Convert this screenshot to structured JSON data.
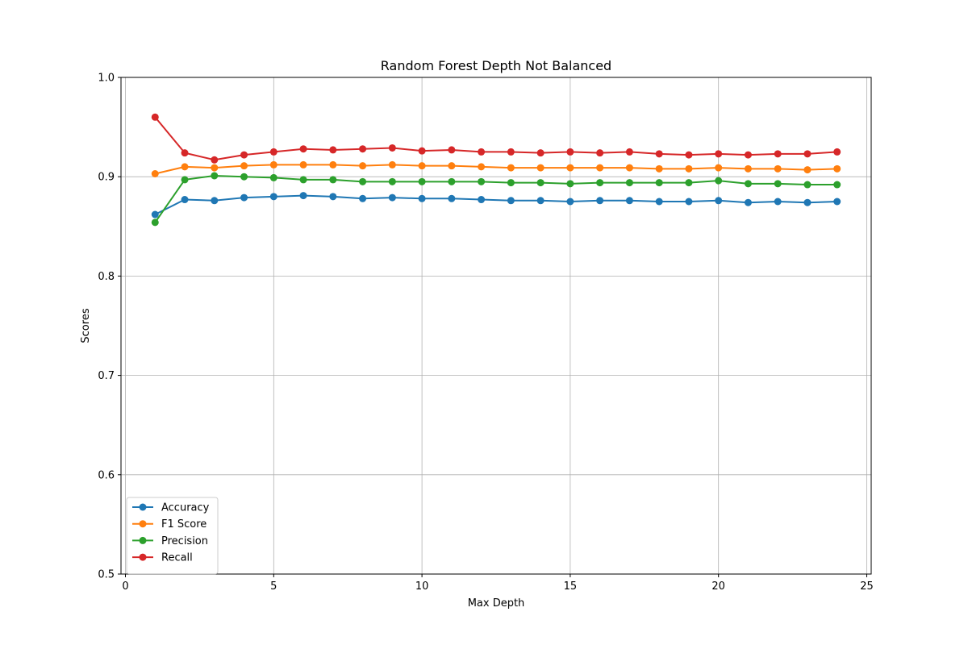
{
  "chart_data": {
    "type": "line",
    "title": "Random Forest Depth Not Balanced",
    "xlabel": "Max Depth",
    "ylabel": "Scores",
    "xlim": [
      -0.15,
      25.15
    ],
    "ylim": [
      0.5,
      1.0
    ],
    "xticks": [
      0,
      5,
      10,
      15,
      20,
      25
    ],
    "yticks": [
      0.5,
      0.6,
      0.7,
      0.8,
      0.9,
      1.0
    ],
    "ytick_labels": [
      "0.5",
      "0.6",
      "0.7",
      "0.8",
      "0.9",
      "1.0"
    ],
    "grid": true,
    "legend_position": "lower-left",
    "x": [
      1,
      2,
      3,
      4,
      5,
      6,
      7,
      8,
      9,
      10,
      11,
      12,
      13,
      14,
      15,
      16,
      17,
      18,
      19,
      20,
      21,
      22,
      23,
      24
    ],
    "series": [
      {
        "name": "Accuracy",
        "color": "#1f77b4",
        "values": [
          0.862,
          0.877,
          0.876,
          0.879,
          0.88,
          0.881,
          0.88,
          0.878,
          0.879,
          0.878,
          0.878,
          0.877,
          0.876,
          0.876,
          0.875,
          0.876,
          0.876,
          0.875,
          0.875,
          0.876,
          0.874,
          0.875,
          0.874,
          0.875
        ]
      },
      {
        "name": "F1 Score",
        "color": "#ff7f0e",
        "values": [
          0.903,
          0.91,
          0.909,
          0.911,
          0.912,
          0.912,
          0.912,
          0.911,
          0.912,
          0.911,
          0.911,
          0.91,
          0.909,
          0.909,
          0.909,
          0.909,
          0.909,
          0.908,
          0.908,
          0.909,
          0.908,
          0.908,
          0.907,
          0.908
        ]
      },
      {
        "name": "Precision",
        "color": "#2ca02c",
        "values": [
          0.854,
          0.897,
          0.901,
          0.9,
          0.899,
          0.897,
          0.897,
          0.895,
          0.895,
          0.895,
          0.895,
          0.895,
          0.894,
          0.894,
          0.893,
          0.894,
          0.894,
          0.894,
          0.894,
          0.896,
          0.893,
          0.893,
          0.892,
          0.892
        ]
      },
      {
        "name": "Recall",
        "color": "#d62728",
        "values": [
          0.96,
          0.924,
          0.917,
          0.922,
          0.925,
          0.928,
          0.927,
          0.928,
          0.929,
          0.926,
          0.927,
          0.925,
          0.925,
          0.924,
          0.925,
          0.924,
          0.925,
          0.923,
          0.922,
          0.923,
          0.922,
          0.923,
          0.923,
          0.925
        ]
      }
    ]
  }
}
